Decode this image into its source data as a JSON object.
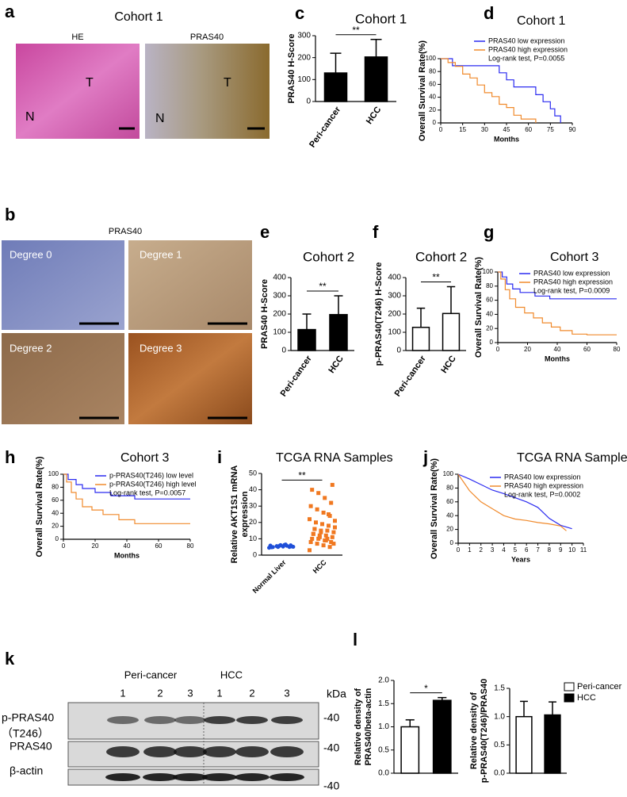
{
  "panel_labels": [
    "a",
    "b",
    "c",
    "d",
    "e",
    "f",
    "g",
    "h",
    "i",
    "j",
    "k",
    "l"
  ],
  "panel_a": {
    "title": "Cohort 1",
    "images": [
      {
        "title": "HE",
        "labels": [
          "N",
          "T"
        ]
      },
      {
        "title": "PRAS40",
        "labels": [
          "N",
          "T"
        ]
      }
    ]
  },
  "panel_b": {
    "title": "PRAS40",
    "images": [
      "Degree 0",
      "Degree 1",
      "Degree 2",
      "Degree 3"
    ]
  },
  "chart_data": [
    {
      "type": "bar",
      "title": "Cohort 1",
      "ylabel": "PRAS40 H-Score",
      "categories": [
        "Peri-cancer",
        "HCC"
      ],
      "values": [
        130,
        203
      ],
      "errors": [
        90,
        80
      ],
      "colors": [
        "#000000",
        "#000000"
      ],
      "ylim": [
        0,
        300
      ],
      "yticks": [
        0,
        100,
        200,
        300
      ],
      "significance": "**"
    },
    {
      "type": "km",
      "title": "Cohort 1",
      "xlabel": "Months",
      "ylabel": "Overall Survival Rate(%)",
      "annotation": "Log-rank test, P=0.0055",
      "series": [
        {
          "name": "PRAS40 low  expression",
          "color": "#2b2bf0",
          "x": [
            0,
            8,
            8,
            40,
            40,
            45,
            45,
            50,
            50,
            65,
            65,
            70,
            70,
            75,
            75,
            78,
            78,
            82,
            82
          ],
          "values": [
            100,
            100,
            89,
            89,
            78,
            78,
            67,
            67,
            56,
            56,
            44,
            44,
            33,
            33,
            22,
            22,
            11,
            11,
            0
          ]
        },
        {
          "name": "PRAS40 high expression",
          "color": "#f08a2c",
          "x": [
            0,
            5,
            5,
            10,
            10,
            15,
            15,
            20,
            20,
            25,
            25,
            30,
            30,
            35,
            35,
            40,
            40,
            45,
            45,
            50,
            50,
            55,
            55,
            65,
            65
          ],
          "values": [
            100,
            100,
            94,
            94,
            88,
            88,
            76,
            76,
            70,
            70,
            59,
            59,
            47,
            47,
            41,
            41,
            29,
            29,
            24,
            24,
            12,
            12,
            6,
            6,
            0
          ]
        }
      ],
      "xlim": [
        0,
        90
      ],
      "xticks": [
        0,
        15,
        30,
        45,
        60,
        75,
        90
      ],
      "ylim": [
        0,
        100
      ],
      "yticks": [
        0,
        20,
        40,
        60,
        80,
        100
      ]
    },
    {
      "type": "bar",
      "title": "Cohort 2",
      "ylabel": "PRAS40 H-Score",
      "categories": [
        "Peri-cancer",
        "HCC"
      ],
      "values": [
        115,
        197
      ],
      "errors": [
        85,
        103
      ],
      "colors": [
        "#000000",
        "#000000"
      ],
      "ylim": [
        0,
        400
      ],
      "yticks": [
        0,
        100,
        200,
        300,
        400
      ],
      "significance": "**"
    },
    {
      "type": "bar",
      "title": "Cohort 2",
      "ylabel": "p-PRAS40(T246) H-Score",
      "categories": [
        "Peri-cancer",
        "HCC"
      ],
      "values": [
        127,
        203
      ],
      "errors": [
        105,
        147
      ],
      "colors": [
        "#ffffff",
        "#ffffff"
      ],
      "ylim": [
        0,
        400
      ],
      "yticks": [
        0,
        100,
        200,
        300,
        400
      ],
      "significance": "**"
    },
    {
      "type": "km",
      "title": "Cohort 3",
      "xlabel": "Months",
      "ylabel": "Overall Survival Rate(%)",
      "annotation": "Log-rank test, P=0.0009",
      "series": [
        {
          "name": "PRAS40 low  expression",
          "color": "#2b2bf0",
          "x": [
            0,
            3,
            3,
            6,
            6,
            10,
            10,
            15,
            15,
            25,
            25,
            35,
            35,
            80
          ],
          "values": [
            100,
            100,
            93,
            93,
            83,
            83,
            76,
            76,
            71,
            71,
            66,
            66,
            62,
            62
          ]
        },
        {
          "name": "PRAS40 high expression",
          "color": "#f08a2c",
          "x": [
            0,
            2,
            2,
            5,
            5,
            8,
            8,
            12,
            12,
            18,
            18,
            24,
            24,
            30,
            30,
            36,
            36,
            42,
            42,
            50,
            50,
            60,
            60,
            80
          ],
          "values": [
            100,
            100,
            90,
            90,
            75,
            75,
            62,
            62,
            50,
            50,
            42,
            42,
            35,
            35,
            28,
            28,
            22,
            22,
            17,
            17,
            12,
            12,
            11,
            11
          ]
        }
      ],
      "xlim": [
        0,
        80
      ],
      "xticks": [
        0,
        20,
        40,
        60,
        80
      ],
      "ylim": [
        0,
        100
      ],
      "yticks": [
        0,
        20,
        40,
        60,
        80,
        100
      ]
    },
    {
      "type": "km",
      "title": "Cohort 3",
      "xlabel": "Months",
      "ylabel": "Overall Survival Rate(%)",
      "annotation": "Log-rank test, P=0.0057",
      "series": [
        {
          "name": "p-PRAS40(T246) low level",
          "color": "#2b2bf0",
          "x": [
            0,
            3,
            3,
            8,
            8,
            12,
            12,
            20,
            20,
            30,
            30,
            45,
            45,
            80
          ],
          "values": [
            100,
            100,
            92,
            92,
            84,
            84,
            78,
            78,
            72,
            72,
            67,
            67,
            62,
            62
          ]
        },
        {
          "name": "p-PRAS40(T246) high level",
          "color": "#f08a2c",
          "x": [
            0,
            2,
            2,
            5,
            5,
            8,
            8,
            12,
            12,
            18,
            18,
            25,
            25,
            35,
            35,
            45,
            45,
            80
          ],
          "values": [
            100,
            100,
            88,
            88,
            72,
            72,
            62,
            62,
            50,
            50,
            45,
            45,
            38,
            38,
            30,
            30,
            24,
            24
          ]
        }
      ],
      "xlim": [
        0,
        80
      ],
      "xticks": [
        0,
        20,
        40,
        60,
        80
      ],
      "ylim": [
        0,
        100
      ],
      "yticks": [
        0,
        20,
        40,
        60,
        80,
        100
      ]
    },
    {
      "type": "strip",
      "title": "TCGA RNA Samples",
      "ylabel": [
        "Relative AKT1S1 mRNA",
        "expression"
      ],
      "categories": [
        "Normal Liver",
        "HCC"
      ],
      "colors": [
        "#1f4fd8",
        "#f07820"
      ],
      "values": [
        [
          4.5,
          5,
          5.2,
          5.5,
          5.8,
          6,
          6.2,
          5,
          4.8,
          5.3,
          6.5,
          5.6,
          4.9,
          5.1,
          5.7,
          6.1
        ],
        [
          3,
          5,
          6,
          7,
          8,
          8,
          9,
          10,
          10,
          11,
          12,
          12,
          13,
          14,
          15,
          15,
          16,
          17,
          18,
          19,
          20,
          22,
          24,
          26,
          28,
          30,
          32,
          35,
          38,
          40,
          43,
          9,
          11,
          13,
          7,
          10,
          14,
          16,
          21,
          25
        ]
      ],
      "ylim": [
        0,
        50
      ],
      "yticks": [
        0,
        10,
        20,
        30,
        40,
        50
      ],
      "significance": "**"
    },
    {
      "type": "km",
      "title": "TCGA RNA Samples",
      "xlabel": "Years",
      "ylabel": "Overall Survival Rate(%)",
      "annotation": "Log-rank test, P=0.0002",
      "series": [
        {
          "name": "PRAS40 low expression",
          "color": "#2b2bf0",
          "x": [
            0,
            1,
            2,
            3,
            4,
            5,
            6,
            7,
            7.5,
            8,
            9,
            10
          ],
          "values": [
            100,
            93,
            85,
            77,
            72,
            66,
            60,
            52,
            44,
            36,
            26,
            21
          ]
        },
        {
          "name": "PRAS40 high expression",
          "color": "#f08a2c",
          "x": [
            0,
            0.5,
            1,
            1.5,
            2,
            3,
            4,
            5,
            6,
            7,
            8,
            9,
            9.5
          ],
          "values": [
            100,
            88,
            76,
            68,
            60,
            50,
            40,
            35,
            33,
            30,
            28,
            25,
            18
          ]
        }
      ],
      "xlim": [
        0,
        11
      ],
      "xticks": [
        0,
        1,
        2,
        3,
        4,
        5,
        6,
        7,
        8,
        9,
        10,
        11
      ],
      "ylim": [
        0,
        100
      ],
      "yticks": [
        0,
        20,
        40,
        60,
        80,
        100
      ]
    },
    {
      "type": "bar",
      "ylabel": [
        "Relative density of",
        "PRAS40/beta-actin"
      ],
      "values": [
        1.0,
        1.57
      ],
      "errors": [
        0.15,
        0.06
      ],
      "colors": [
        "#ffffff",
        "#000000"
      ],
      "ylim": [
        0,
        2
      ],
      "yticks": [
        {
          "value": 0,
          "label": "0.0"
        },
        0.5,
        {
          "value": 1,
          "label": "1.0"
        },
        1.5,
        {
          "value": 2,
          "label": "2.0"
        }
      ],
      "significance": "*"
    },
    {
      "type": "bar",
      "ylabel": [
        "Relative density of",
        "p-PRAS40(T246)/PRAS40"
      ],
      "values": [
        1.0,
        1.03
      ],
      "errors": [
        0.27,
        0.23
      ],
      "colors": [
        "#ffffff",
        "#000000"
      ],
      "ylim": [
        0,
        1.5
      ],
      "yticks": [
        {
          "value": 0,
          "label": "0.0"
        },
        0.5,
        {
          "value": 1,
          "label": "1.0"
        },
        1.5
      ],
      "legend_labels": [
        "Peri-cancer",
        "HCC"
      ]
    }
  ],
  "western_blot": {
    "groups": [
      "Peri-cancer",
      "HCC"
    ],
    "lanes": [
      "1",
      "2",
      "3",
      "1",
      "2",
      "3"
    ],
    "unit": "kDa",
    "rows": [
      {
        "label": "p-PRAS40",
        "sublabel": "（T246）",
        "marker": "-40"
      },
      {
        "label": "PRAS40",
        "marker": "-40"
      },
      {
        "label": "β-actin",
        "marker": "-40"
      }
    ]
  }
}
